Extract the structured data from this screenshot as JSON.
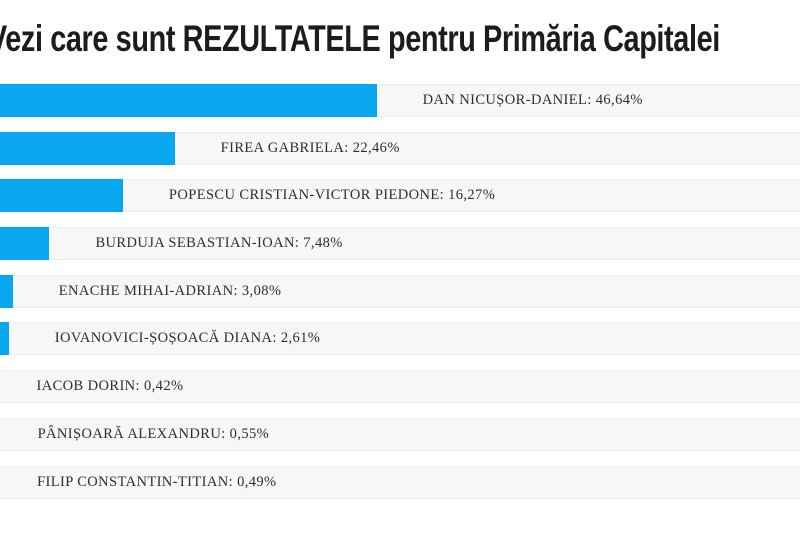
{
  "page": {
    "title": "Vezi care sunt REZULTATELE pentru Primăria Capitalei"
  },
  "chart_data": {
    "type": "bar",
    "orientation": "horizontal",
    "title": "Vezi care sunt REZULTATELE pentru Primăria Capitalei",
    "unit": "%",
    "decimal_separator": ",",
    "xlim": [
      0,
      100
    ],
    "grid": false,
    "legend": "none",
    "bar_color": "#09a7ef",
    "row_background_color": "#f7f7f7",
    "row_border_color": "#ececec",
    "label_text_color": "#2e2e2e",
    "categories": [
      "DAN NICUȘOR-DANIEL",
      "FIREA GABRIELA",
      "POPESCU CRISTIAN-VICTOR PIEDONE",
      "BURDUJA SEBASTIAN-IOAN",
      "ENACHE MIHAI-ADRIAN",
      "IOVANOVICI-ȘOȘOACĂ DIANA",
      "IACOB DORIN",
      "PÂNIȘOARĂ ALEXANDRU",
      "FILIP CONSTANTIN-TITIAN"
    ],
    "values": [
      46.64,
      22.46,
      16.27,
      7.48,
      3.08,
      2.61,
      0.42,
      0.55,
      0.49
    ],
    "candidates": [
      {
        "name": "DAN NICUȘOR-DANIEL",
        "percent": 46.64,
        "percent_display": "46,64%",
        "label": "DAN NICUȘOR-DANIEL: 46,64%"
      },
      {
        "name": "FIREA GABRIELA",
        "percent": 22.46,
        "percent_display": "22,46%",
        "label": "FIREA GABRIELA: 22,46%"
      },
      {
        "name": "POPESCU CRISTIAN-VICTOR PIEDONE",
        "percent": 16.27,
        "percent_display": "16,27%",
        "label": "POPESCU CRISTIAN-VICTOR PIEDONE: 16,27%"
      },
      {
        "name": "BURDUJA SEBASTIAN-IOAN",
        "percent": 7.48,
        "percent_display": "7,48%",
        "label": "BURDUJA SEBASTIAN-IOAN: 7,48%"
      },
      {
        "name": "ENACHE MIHAI-ADRIAN",
        "percent": 3.08,
        "percent_display": "3,08%",
        "label": "ENACHE MIHAI-ADRIAN: 3,08%"
      },
      {
        "name": "IOVANOVICI-ȘOȘOACĂ DIANA",
        "percent": 2.61,
        "percent_display": "2,61%",
        "label": "IOVANOVICI-ȘOȘOACĂ DIANA: 2,61%"
      },
      {
        "name": "IACOB DORIN",
        "percent": 0.42,
        "percent_display": "0,42%",
        "label": "IACOB DORIN: 0,42%"
      },
      {
        "name": "PÂNIȘOARĂ ALEXANDRU",
        "percent": 0.55,
        "percent_display": "0,55%",
        "label": "PÂNIȘOARĂ ALEXANDRU: 0,55%"
      },
      {
        "name": "FILIP CONSTANTIN-TITIAN",
        "percent": 0.49,
        "percent_display": "0,49%",
        "label": "FILIP CONSTANTIN-TITIAN: 0,49%"
      }
    ]
  }
}
